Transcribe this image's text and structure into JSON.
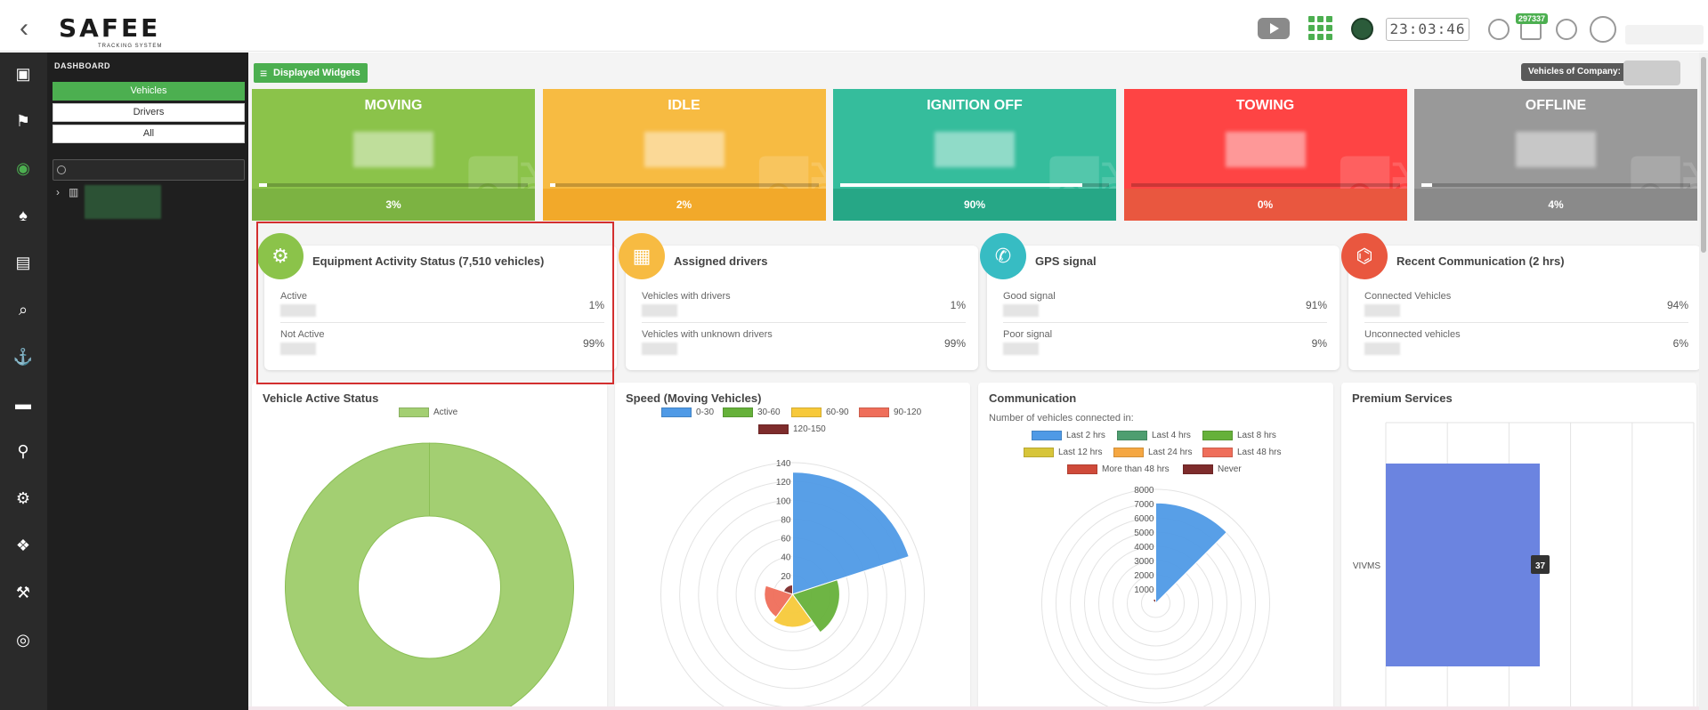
{
  "header": {
    "back": "‹",
    "logo_word": "SAFEE",
    "logo_sub": "TRACKING SYSTEM",
    "clock": "23:03:46",
    "notification_count": "297337"
  },
  "sidebar": {
    "icons": [
      "monitor-pin-icon",
      "route-icon",
      "dashboard-gauge-icon",
      "alarm-bell-icon",
      "clipboard-icon",
      "search-icon",
      "anchor-icon",
      "gamepad-icon",
      "map-pin-icon",
      "settings-cogs-icon",
      "packages-icon",
      "hammer-icon",
      "target-icon"
    ],
    "active_index": 2
  },
  "tree": {
    "title": "DASHBOARD",
    "segments": [
      "Vehicles",
      "Drivers",
      "All"
    ],
    "selected": "Vehicles",
    "search_placeholder": ""
  },
  "toolbar": {
    "displayed_widgets": "Displayed Widgets",
    "vehicles_of_company": "Vehicles of Company:"
  },
  "status_tiles": [
    {
      "name": "MOVING",
      "percent": "3%",
      "fill": 0.03,
      "color": "#8bc34a",
      "foot": "#7cb342"
    },
    {
      "name": "IDLE",
      "percent": "2%",
      "fill": 0.02,
      "color": "#f7bb42",
      "foot": "#f2a92a"
    },
    {
      "name": "IGNITION OFF",
      "percent": "90%",
      "fill": 0.9,
      "color": "#35bd9c",
      "foot": "#26a786"
    },
    {
      "name": "TOWING",
      "percent": "0%",
      "fill": 0.0,
      "color": "#fe4444",
      "foot": "#e9573f"
    },
    {
      "name": "OFFLINE",
      "percent": "4%",
      "fill": 0.04,
      "color": "#999999",
      "foot": "#8a8a8a"
    }
  ],
  "cards": [
    {
      "title": "Equipment Activity Status (7,510 vehicles)",
      "color": "#8bc34a",
      "icon": "equipment-icon",
      "rows": [
        {
          "label": "Active",
          "pct": "1%"
        },
        {
          "label": "Not Active",
          "pct": "99%"
        }
      ]
    },
    {
      "title": "Assigned drivers",
      "color": "#f7bb42",
      "icon": "driver-card-icon",
      "rows": [
        {
          "label": "Vehicles with drivers",
          "pct": "1%"
        },
        {
          "label": "Vehicles with unknown drivers",
          "pct": "99%"
        }
      ]
    },
    {
      "title": "GPS signal",
      "color": "#37bcc3",
      "icon": "satellite-dish-icon",
      "rows": [
        {
          "label": "Good signal",
          "pct": "91%"
        },
        {
          "label": "Poor signal",
          "pct": "9%"
        }
      ]
    },
    {
      "title": "Recent Communication (2 hrs)",
      "color": "#e9573f",
      "icon": "antenna-icon",
      "rows": [
        {
          "label": "Connected Vehicles",
          "pct": "94%"
        },
        {
          "label": "Unconnected vehicles",
          "pct": "6%"
        }
      ]
    }
  ],
  "panels": {
    "active_status": {
      "title": "Vehicle Active Status"
    },
    "speed": {
      "title": "Speed (Moving Vehicles)"
    },
    "communication": {
      "title": "Communication",
      "subtitle": "Number of vehicles connected in:"
    },
    "premium": {
      "title": "Premium Services"
    }
  },
  "chart_data": [
    {
      "type": "pie",
      "title": "Vehicle Active Status",
      "legend": [
        "Active"
      ],
      "colors": [
        "#a3cf72"
      ],
      "values": [
        1
      ]
    },
    {
      "type": "polarArea",
      "title": "Speed (Moving Vehicles)",
      "categories": [
        "0-30",
        "30-60",
        "60-90",
        "90-120",
        "120-150"
      ],
      "colors": [
        "#4f9ae6",
        "#66b13a",
        "#f7c93a",
        "#ef6e5a",
        "#7e2c2c"
      ],
      "values": [
        130,
        50,
        35,
        30,
        10
      ],
      "rticks": [
        "20",
        "40",
        "60",
        "80",
        "100",
        "120",
        "140"
      ],
      "rmax": 140
    },
    {
      "type": "polarArea",
      "title": "Communication",
      "categories": [
        "Last 2 hrs",
        "Last 4 hrs",
        "Last 8 hrs",
        "Last 12 hrs",
        "Last 24 hrs",
        "Last 48 hrs",
        "More than 48 hrs",
        "Never"
      ],
      "colors": [
        "#4f9ae6",
        "#4e9e70",
        "#66b13a",
        "#d7c53a",
        "#f5a742",
        "#ef6e5a",
        "#cf4a3a",
        "#7e2c2c"
      ],
      "values": [
        7050,
        5,
        5,
        5,
        5,
        5,
        5,
        300
      ],
      "rticks": [
        "1000",
        "2000",
        "3000",
        "4000",
        "5000",
        "6000",
        "7000",
        "8000"
      ],
      "rmax": 8000
    },
    {
      "type": "bar",
      "orientation": "horizontal",
      "title": "Premium Services",
      "categories": [
        "VIVMS"
      ],
      "values": [
        37
      ],
      "colors": [
        "#6b84e0"
      ],
      "xmax": 74
    }
  ]
}
